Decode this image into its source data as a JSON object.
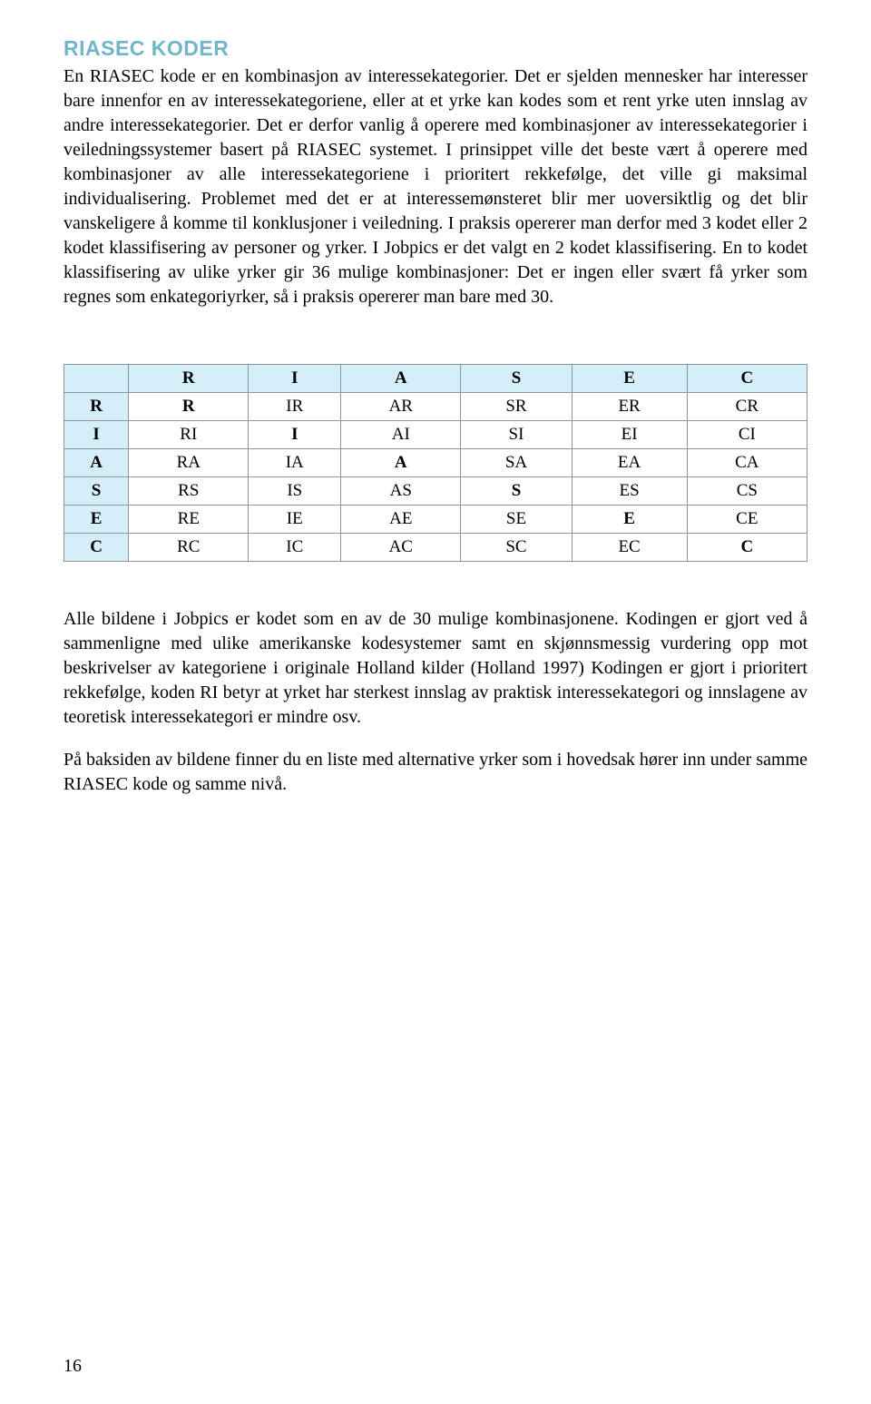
{
  "title": {
    "text": "RIASEC KODER",
    "color": "#6fb7c6",
    "fontsize": 23
  },
  "body_fontsize": 20,
  "paragraph1": "En RIASEC kode er en kombinasjon av interessekategorier. Det er sjelden mennesker har interesser bare innenfor en av interessekategoriene, eller at et yrke kan kodes som et rent yrke uten innslag av andre interessekategorier. Det er derfor vanlig å operere med kombinasjoner av interessekategorier i veiledningssystemer basert på RIASEC systemet. I prinsippet ville det beste vært å operere med kombinasjoner av alle interessekategoriene i prioritert rekkefølge, det ville gi maksimal individualisering. Problemet med det er at interessemønsteret blir mer uoversiktlig og det blir vanskeligere å komme til konklusjoner i veiledning. I praksis opererer man derfor med 3 kodet eller 2 kodet klassifisering av personer og yrker. I Jobpics er det valgt en 2 kodet klassifisering. En to kodet klassifisering av ulike yrker gir 36 mulige kombinasjoner: Det er ingen eller svært få yrker som regnes som enkategoriyrker, så i praksis opererer man bare med 30.",
  "table": {
    "header_bg": "#d4effa",
    "columns": [
      "",
      "R",
      "I",
      "A",
      "S",
      "E",
      "C"
    ],
    "rows": [
      [
        "R",
        "R",
        "IR",
        "AR",
        "SR",
        "ER",
        "CR"
      ],
      [
        "I",
        "RI",
        "I",
        "AI",
        "SI",
        "EI",
        "CI"
      ],
      [
        "A",
        "RA",
        "IA",
        "A",
        "SA",
        "EA",
        "CA"
      ],
      [
        "S",
        "RS",
        "IS",
        "AS",
        "S",
        "ES",
        "CS"
      ],
      [
        "E",
        "RE",
        "IE",
        "AE",
        "SE",
        "E",
        "CE"
      ],
      [
        "C",
        "RC",
        "IC",
        "AC",
        "SC",
        "EC",
        "C"
      ]
    ],
    "cell_fontsize": 19
  },
  "paragraph2": "Alle bildene i Jobpics er kodet som en av de 30 mulige kombinasjonene. Kodingen er gjort ved å sammenligne med ulike amerikanske kodesystemer samt en skjønnsmessig vurdering opp mot beskrivelser av kategoriene i originale Holland kilder (Holland 1997) Kodingen er gjort i prioritert rekkefølge, koden RI betyr at yrket har sterkest innslag av praktisk interessekategori og innslagene av teoretisk interessekategori er mindre osv.",
  "paragraph3": "På baksiden av bildene finner du en liste med alternative yrker som i hovedsak hører inn under samme RIASEC kode og samme nivå.",
  "page_number": "16"
}
